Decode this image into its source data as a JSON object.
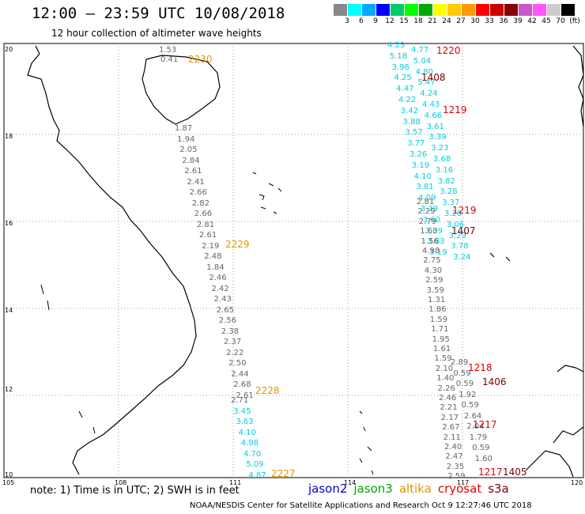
{
  "header": {
    "title": "12:00 – 23:59 UTC 10/08/2018",
    "subtitle": "12 hour collection of altimeter wave heights"
  },
  "scale": {
    "colors": [
      "#888888",
      "#00ffff",
      "#00aaff",
      "#0000ff",
      "#00cc66",
      "#00ff00",
      "#00aa00",
      "#ffff00",
      "#ffcc00",
      "#ff9900",
      "#ff0000",
      "#cc0000",
      "#880000",
      "#cc55cc",
      "#ff55ff",
      "#cccccc",
      "#000000"
    ],
    "labels": [
      "3",
      "6",
      "9",
      "12",
      "15",
      "18",
      "21",
      "24",
      "27",
      "30",
      "33",
      "36",
      "39",
      "42",
      "45",
      "70",
      "(ft)"
    ]
  },
  "map": {
    "lat_labels": [
      "20",
      "18",
      "16",
      "14",
      "12",
      "10"
    ],
    "lon_labels": [
      "105",
      "108",
      "111",
      "114",
      "117",
      "120"
    ]
  },
  "tracks": {
    "t2230": {
      "time": "2230",
      "color": "#e69500",
      "values": [
        "1.53",
        "0.41"
      ]
    },
    "t2229": {
      "time": "2229",
      "color": "#e69500",
      "values": [
        "1.87",
        "1.94",
        "2.05",
        "2.84",
        "2.61",
        "2.41",
        "2.66",
        "2.82",
        "2.66",
        "2.81",
        "2.61",
        "2.19",
        "2.48",
        "1.84",
        "2.46",
        "2.42",
        "2.43",
        "2.65",
        "2.56",
        "2.38",
        "2.37",
        "2.22",
        "2.50",
        "2.44",
        "2.68",
        "2.61"
      ]
    },
    "t2228": {
      "time": "2228",
      "color": "#e69500",
      "values": [
        "2.71",
        "3.45",
        "3.63",
        "4.10",
        "4.98",
        "4.70",
        "5.09",
        "4.87"
      ]
    },
    "t2227": {
      "time": "2227"
    },
    "cyan_track": {
      "color": "#00cfe0",
      "values": [
        "4.23",
        "4.77",
        "5.18",
        "5.04",
        "3.96",
        "4.80",
        "4.25",
        "5.47",
        "4.47",
        "4.24",
        "4.22",
        "4.43",
        "3.42",
        "4.66",
        "3.88",
        "3.61",
        "3.57",
        "3.39",
        "3.77",
        "3.23",
        "3.26",
        "3.68",
        "3.19",
        "3.16",
        "4.10",
        "3.82",
        "3.81",
        "3.28",
        "4.09",
        "3.37",
        "3.39",
        "3.28",
        "3.60",
        "3.06",
        "3.09",
        "3.29",
        "3.83",
        "3.78",
        "3.19",
        "3.24"
      ]
    },
    "grey_right": {
      "color": "#666666",
      "values": [
        "2.81",
        "2.29",
        "2.79",
        "1.63",
        "1.56",
        "4.98",
        "2.75",
        "4.30",
        "2.59",
        "3.59",
        "1.31",
        "1.86",
        "1.59",
        "1.71",
        "1.95",
        "1.61",
        "1.59",
        "2.10",
        "1.40",
        "2.26",
        "2.46",
        "2.21",
        "2.17",
        "2.67",
        "2.11",
        "2.40",
        "2.47",
        "2.35",
        "2.59",
        "2.89",
        "0.59",
        "0.59",
        "1.92",
        "0.59",
        "2.64",
        "2.04",
        "1.79",
        "0.59",
        "1.60"
      ]
    },
    "red_labels": [
      {
        "time": "1220",
        "color": "#e00000"
      },
      {
        "time": "1219",
        "color": "#e00000"
      },
      {
        "time": "1219",
        "color": "#e00000"
      },
      {
        "time": "1218",
        "color": "#e00000"
      },
      {
        "time": "1217",
        "color": "#e00000"
      },
      {
        "time": "1217",
        "color": "#e00000"
      }
    ],
    "darkred_labels": [
      {
        "time": "1408",
        "color": "#7a0000"
      },
      {
        "time": "1407",
        "color": "#7a0000"
      },
      {
        "time": "1406",
        "color": "#7a0000"
      },
      {
        "time": "1405",
        "color": "#7a0000"
      }
    ]
  },
  "legend": {
    "note": "note:  1) Time is in UTC;  2) SWH is in feet",
    "satellites": [
      {
        "name": "jason2",
        "color": "#0000cc"
      },
      {
        "name": "jason3",
        "color": "#00aa00"
      },
      {
        "name": "altika",
        "color": "#e69500"
      },
      {
        "name": "cryosat",
        "color": "#e00000"
      },
      {
        "name": "s3a",
        "color": "#7a0000"
      }
    ]
  },
  "footer": "NOAA/NESDIS Center for Satellite Applications and Research     Oct  9 12:27:46 UTC 2018"
}
